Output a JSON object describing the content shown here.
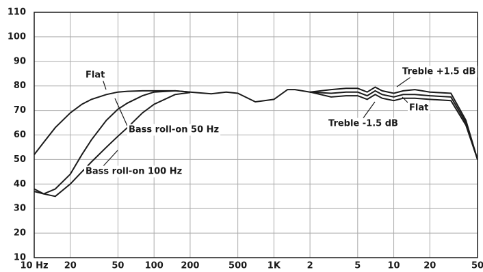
{
  "chart_data": {
    "type": "line",
    "x": [
      10,
      12,
      15,
      20,
      25,
      30,
      40,
      50,
      60,
      80,
      100,
      150,
      200,
      300,
      400,
      500,
      700,
      1000,
      1300,
      1500,
      2000,
      3000,
      4000,
      5000,
      6000,
      7000,
      8000,
      10000,
      12000,
      15000,
      20000,
      30000,
      40000,
      50000
    ],
    "series": [
      {
        "name": "Flat",
        "color": "#1a1a1a",
        "values": [
          52,
          57,
          63,
          69,
          72.5,
          74.5,
          76.5,
          77.5,
          77.8,
          78,
          78,
          78,
          77.5,
          76.8,
          77.5,
          77,
          73.5,
          74.5,
          78.5,
          78.5,
          77.5,
          77,
          77.5,
          77.5,
          76,
          78,
          76.5,
          75.5,
          76.5,
          76.5,
          76,
          75.5,
          65,
          50
        ]
      },
      {
        "name": "Bass roll-on 50 Hz",
        "color": "#1a1a1a",
        "values": [
          38,
          36,
          38,
          44,
          52,
          58,
          66,
          70.5,
          73,
          76,
          77.5,
          78,
          77.5,
          null,
          null,
          null,
          null,
          null,
          null,
          null,
          null,
          null,
          null,
          null,
          null,
          null,
          null,
          null,
          null,
          null,
          null,
          null,
          null,
          null
        ]
      },
      {
        "name": "Bass roll-on 100 Hz",
        "color": "#1a1a1a",
        "values": [
          37,
          36,
          35,
          40,
          45,
          49,
          55,
          59.5,
          63,
          69,
          72.5,
          76.5,
          77.3,
          null,
          null,
          null,
          null,
          null,
          null,
          null,
          null,
          null,
          null,
          null,
          null,
          null,
          null,
          null,
          null,
          null,
          null,
          null,
          null,
          null
        ]
      },
      {
        "name": "Treble +1.5 dB",
        "color": "#1a1a1a",
        "values": [
          null,
          null,
          null,
          null,
          null,
          null,
          null,
          null,
          null,
          null,
          null,
          null,
          null,
          null,
          null,
          null,
          null,
          null,
          null,
          null,
          77.5,
          78.5,
          79,
          79,
          77.5,
          79.5,
          78,
          77,
          78,
          78.5,
          77.5,
          77,
          66,
          50
        ]
      },
      {
        "name": "Treble -1.5 dB",
        "color": "#1a1a1a",
        "values": [
          null,
          null,
          null,
          null,
          null,
          null,
          null,
          null,
          null,
          null,
          null,
          null,
          null,
          null,
          null,
          null,
          null,
          null,
          null,
          null,
          77.5,
          75.5,
          76,
          76,
          74.5,
          76.5,
          75,
          74,
          75,
          75,
          74.5,
          74,
          64,
          50
        ]
      }
    ],
    "xscale": "log",
    "xlim": [
      10,
      50000
    ],
    "ylim": [
      10,
      110
    ],
    "xticks": [
      {
        "value": 10,
        "label": "10 Hz"
      },
      20,
      50,
      100,
      200,
      500,
      {
        "value": 1000,
        "label": "1K"
      },
      {
        "value": 2000,
        "label": "2"
      },
      {
        "value": 5000,
        "label": "5"
      },
      {
        "value": 10000,
        "label": "10"
      },
      {
        "value": 20000,
        "label": "20"
      },
      {
        "value": 50000,
        "label": "50"
      }
    ],
    "yticks": [
      10,
      20,
      30,
      40,
      50,
      60,
      70,
      80,
      90,
      100,
      110
    ],
    "grid": true
  }
}
